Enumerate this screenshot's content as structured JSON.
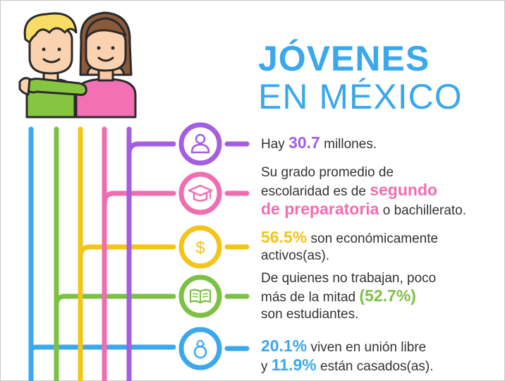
{
  "title": {
    "line1": "JÓVENES",
    "line2": "EN MÉXICO"
  },
  "colors": {
    "blue": "#3ba8ec",
    "green": "#7cc143",
    "yellow": "#f4c418",
    "pink": "#f06eb0",
    "purple": "#a35fe0",
    "text": "#333333"
  },
  "icons": [
    "two-youths-illustration",
    "person-icon",
    "graduation-cap-icon",
    "dollar-icon",
    "open-book-icon",
    "ring-icon"
  ],
  "facts": {
    "f1": {
      "pre": "Hay ",
      "hl": "30.7",
      "post": " millones."
    },
    "f2": {
      "l1": "Su grado promedio de",
      "l2a": "escolaridad es de ",
      "hl1": "segundo",
      "hl2": "de preparatoria",
      "post": " o bachillerato."
    },
    "f3": {
      "hl": "56.5%",
      "l1": " son económicamente",
      "l2": "activos(as)."
    },
    "f4": {
      "l1": "De quienes no trabajan, poco",
      "l2a": "más de la mitad ",
      "hl": "(52.7%)",
      "l3": "son estudiantes."
    },
    "f5": {
      "hl1": "20.1%",
      "l1": " viven en unión libre",
      "pre2": "y ",
      "hl2": "11.9%",
      "l2": " están casados(as)."
    }
  }
}
